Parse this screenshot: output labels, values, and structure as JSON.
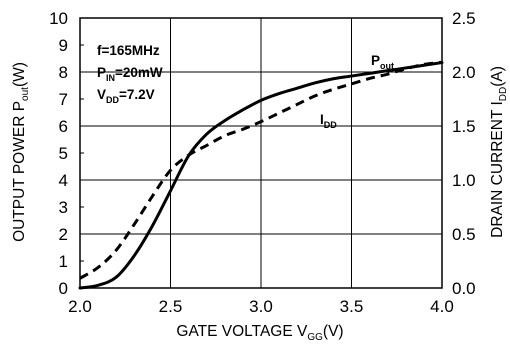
{
  "chart_data": {
    "type": "line",
    "title": "",
    "xlabel": {
      "main": "GATE VOLTAGE V",
      "sub": "GG",
      "unit": "(V)"
    },
    "ylabel_left": {
      "main": "OUTPUT POWER P",
      "sub": "out",
      "unit": "(W)"
    },
    "ylabel_right": {
      "main": "DRAIN CURRENT I",
      "sub": "DD",
      "unit": "(A)"
    },
    "xlim": [
      2.0,
      4.0
    ],
    "ylim_left": [
      0,
      10
    ],
    "ylim_right": [
      0.0,
      2.5
    ],
    "x_ticks": [
      "2.0",
      "2.5",
      "3.0",
      "3.5",
      "4.0"
    ],
    "y_left_ticks": [
      "0",
      "1",
      "2",
      "3",
      "4",
      "5",
      "6",
      "7",
      "8",
      "9",
      "10"
    ],
    "y_right_ticks": [
      "0.0",
      "0.5",
      "1.0",
      "1.5",
      "2.0",
      "2.5"
    ],
    "grid": true,
    "conditions": [
      {
        "main": "f=165MHz",
        "sub": "",
        "tail": ""
      },
      {
        "main": "P",
        "sub": "IN",
        "tail": "=20mW"
      },
      {
        "main": "V",
        "sub": "DD",
        "tail": "=7.2V"
      }
    ],
    "series": [
      {
        "name": "Pout",
        "label_main": "P",
        "label_sub": "out",
        "axis": "left",
        "style": "solid",
        "x": [
          2.0,
          2.1,
          2.2,
          2.3,
          2.4,
          2.5,
          2.6,
          2.7,
          2.8,
          2.9,
          3.0,
          3.1,
          3.2,
          3.3,
          3.4,
          3.5,
          3.6,
          3.7,
          3.8,
          3.9,
          4.0
        ],
        "y": [
          0.0,
          0.1,
          0.4,
          1.2,
          2.3,
          3.6,
          4.9,
          5.7,
          6.2,
          6.6,
          6.95,
          7.2,
          7.4,
          7.6,
          7.75,
          7.85,
          7.95,
          8.05,
          8.15,
          8.25,
          8.35
        ]
      },
      {
        "name": "IDD",
        "label_main": "I",
        "label_sub": "DD",
        "axis": "right",
        "style": "dashed",
        "x": [
          2.0,
          2.1,
          2.2,
          2.3,
          2.4,
          2.5,
          2.6,
          2.7,
          2.8,
          2.9,
          3.0,
          3.1,
          3.2,
          3.3,
          3.4,
          3.5,
          3.6,
          3.7,
          3.8,
          3.9,
          4.0
        ],
        "y": [
          0.09,
          0.19,
          0.35,
          0.59,
          0.85,
          1.09,
          1.23,
          1.32,
          1.41,
          1.47,
          1.54,
          1.62,
          1.7,
          1.78,
          1.84,
          1.89,
          1.94,
          1.98,
          2.03,
          2.07,
          2.09
        ]
      }
    ]
  }
}
